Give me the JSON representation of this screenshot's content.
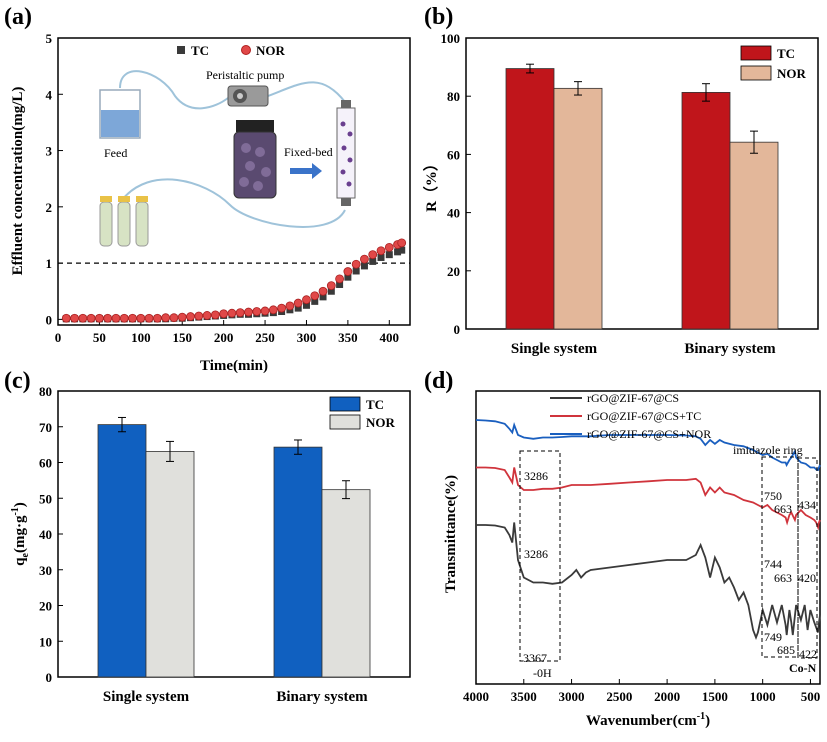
{
  "colors": {
    "tc_red": "#c0151b",
    "nor_tan": "#e3b79a",
    "tc_blue": "#1060c0",
    "nor_gray": "#e0e0dc",
    "tc_dark": "#3a3a3a",
    "nor_sphere": "#e04848",
    "line_black": "#3a3a3a",
    "line_red": "#d0343c",
    "line_blue": "#1a5fbf"
  },
  "panels": {
    "a": "(a)",
    "b": "(b)",
    "c": "(c)",
    "d": "(d)"
  },
  "chart_data": [
    {
      "id": "a",
      "type": "scatter",
      "xlabel": "Time(min)",
      "ylabel": "Effluent concentration(mg/L)",
      "xlim": [
        0,
        425
      ],
      "ylim": [
        -0.1,
        5
      ],
      "xticks": [
        0,
        50,
        100,
        150,
        200,
        250,
        300,
        350,
        400
      ],
      "yticks": [
        0,
        1,
        2,
        3,
        4,
        5
      ],
      "reference_line_y": 1,
      "legend": [
        "TC",
        "NOR"
      ],
      "inset_labels": {
        "feed": "Feed",
        "pump": "Peristaltic pump",
        "bed": "Fixed-bed"
      },
      "series": [
        {
          "name": "TC",
          "x": [
            10,
            20,
            30,
            40,
            50,
            60,
            70,
            80,
            90,
            100,
            110,
            120,
            130,
            140,
            150,
            160,
            170,
            180,
            190,
            200,
            210,
            220,
            230,
            240,
            250,
            260,
            270,
            280,
            290,
            300,
            310,
            320,
            330,
            340,
            350,
            360,
            370,
            380,
            390,
            400,
            410,
            415
          ],
          "y": [
            0.01,
            0.01,
            0.01,
            0.01,
            0.01,
            0.01,
            0.01,
            0.01,
            0.01,
            0.01,
            0.01,
            0.01,
            0.01,
            0.02,
            0.02,
            0.03,
            0.04,
            0.05,
            0.06,
            0.07,
            0.08,
            0.09,
            0.09,
            0.1,
            0.11,
            0.12,
            0.14,
            0.17,
            0.2,
            0.25,
            0.32,
            0.4,
            0.5,
            0.62,
            0.75,
            0.86,
            0.95,
            1.03,
            1.1,
            1.15,
            1.2,
            1.23
          ]
        },
        {
          "name": "NOR",
          "x": [
            10,
            20,
            30,
            40,
            50,
            60,
            70,
            80,
            90,
            100,
            110,
            120,
            130,
            140,
            150,
            160,
            170,
            180,
            190,
            200,
            210,
            220,
            230,
            240,
            250,
            260,
            270,
            280,
            290,
            300,
            310,
            320,
            330,
            340,
            350,
            360,
            370,
            380,
            390,
            400,
            410,
            415
          ],
          "y": [
            0.02,
            0.02,
            0.02,
            0.02,
            0.02,
            0.02,
            0.02,
            0.02,
            0.02,
            0.02,
            0.02,
            0.02,
            0.03,
            0.03,
            0.04,
            0.05,
            0.06,
            0.07,
            0.08,
            0.1,
            0.11,
            0.12,
            0.13,
            0.14,
            0.15,
            0.17,
            0.2,
            0.24,
            0.29,
            0.35,
            0.42,
            0.5,
            0.6,
            0.72,
            0.85,
            0.98,
            1.07,
            1.15,
            1.22,
            1.28,
            1.33,
            1.36
          ]
        }
      ]
    },
    {
      "id": "b",
      "type": "bar",
      "categories": [
        "Single system",
        "Binary system"
      ],
      "ylabel": "R（%）",
      "ylim": [
        0,
        100
      ],
      "yticks": [
        0,
        20,
        40,
        60,
        80,
        100
      ],
      "legend_position": "top-right",
      "series": [
        {
          "name": "TC",
          "values": [
            89.5,
            81.3
          ],
          "errors": [
            1.5,
            3.0
          ]
        },
        {
          "name": "NOR",
          "values": [
            82.7,
            64.2
          ],
          "errors": [
            2.3,
            3.8
          ]
        }
      ]
    },
    {
      "id": "c",
      "type": "bar",
      "categories": [
        "Single system",
        "Binary system"
      ],
      "ylabel_main": "q",
      "ylabel_sub": "e",
      "ylabel_unit": "(mg·g",
      "ylabel_sup": "-1",
      "ylabel_end": ")",
      "ylim": [
        0,
        80
      ],
      "yticks": [
        0,
        10,
        20,
        30,
        40,
        50,
        60,
        70,
        80
      ],
      "legend_position": "top-right",
      "series": [
        {
          "name": "TC",
          "values": [
            70.6,
            64.3
          ],
          "errors": [
            2.0,
            2.0
          ]
        },
        {
          "name": "NOR",
          "values": [
            63.1,
            52.4
          ],
          "errors": [
            2.8,
            2.5
          ]
        }
      ]
    },
    {
      "id": "d",
      "type": "line",
      "xlabel": "Wavenumber(cm",
      "xlabel_sup": "-1",
      "xlabel_end": ")",
      "ylabel": "Transmittance(%)",
      "xlim": [
        4000,
        400
      ],
      "xticks": [
        4000,
        3500,
        3000,
        2500,
        2000,
        1500,
        1000,
        500
      ],
      "legend": [
        "rGO@ZIF-67@CS",
        "rGO@ZIF-67@CS+TC",
        "rGO@ZIF-67@CS+NOR"
      ],
      "annotations": {
        "imidazole": "imidazole ring",
        "nor_3286": "3286",
        "tc_3286": "3286",
        "base_3367": "3367",
        "oh": "-0H",
        "nor_750": "750",
        "nor_663": "663",
        "nor_434": "434",
        "tc_744": "744",
        "tc_663": "663",
        "tc_420": "420",
        "base_749": "749",
        "base_685": "685",
        "base_422": "422",
        "con": "Co-N"
      },
      "series": [
        {
          "name": "rGO@ZIF-67@CS",
          "x": [
            4000,
            3900,
            3800,
            3700,
            3650,
            3620,
            3600,
            3560,
            3500,
            3400,
            3300,
            3200,
            3100,
            3000,
            2950,
            2900,
            2850,
            2800,
            2600,
            2400,
            2200,
            2000,
            1800,
            1700,
            1650,
            1600,
            1550,
            1500,
            1450,
            1400,
            1350,
            1300,
            1250,
            1200,
            1150,
            1100,
            1070,
            1050,
            1000,
            950,
            900,
            850,
            800,
            760,
            749,
            720,
            700,
            685,
            650,
            600,
            560,
            530,
            500,
            460,
            440,
            430,
            422,
            410,
            400
          ],
          "y": [
            54,
            54,
            53.8,
            53,
            50,
            47,
            55,
            40,
            33,
            31,
            31,
            30.5,
            31,
            34,
            36,
            33,
            35,
            36,
            37,
            38,
            39,
            40,
            40,
            42,
            46,
            41,
            33,
            41,
            37,
            31,
            33,
            29,
            24,
            27,
            22,
            12,
            9,
            11,
            20,
            14,
            22,
            15,
            22,
            14,
            10,
            20,
            15,
            10,
            22,
            16,
            22,
            12,
            20,
            15,
            13,
            12,
            11,
            15,
            18
          ]
        },
        {
          "name": "rGO@ZIF-67@CS+TC",
          "x": [
            4000,
            3900,
            3800,
            3700,
            3650,
            3620,
            3600,
            3560,
            3500,
            3400,
            3300,
            3200,
            3100,
            3000,
            2900,
            2800,
            2600,
            2400,
            2200,
            2000,
            1800,
            1700,
            1650,
            1600,
            1550,
            1500,
            1450,
            1400,
            1300,
            1200,
            1100,
            1050,
            1000,
            950,
            900,
            850,
            800,
            760,
            744,
            720,
            700,
            663,
            650,
            600,
            550,
            500,
            460,
            440,
            430,
            420,
            410,
            400
          ],
          "y": [
            77,
            77,
            76.8,
            76,
            73,
            71,
            77,
            70,
            68,
            68,
            68.5,
            68.5,
            69,
            70,
            70,
            70,
            70.5,
            71,
            71.5,
            72,
            72,
            72.5,
            71,
            66,
            69,
            67,
            69,
            67,
            66,
            64,
            63,
            62,
            61,
            62,
            60,
            59,
            58,
            57,
            55,
            58,
            59,
            56,
            58,
            60,
            58,
            57,
            56,
            55,
            54,
            53,
            55,
            56
          ]
        },
        {
          "name": "rGO@ZIF-67@CS+NOR",
          "x": [
            4000,
            3900,
            3800,
            3700,
            3650,
            3620,
            3600,
            3560,
            3500,
            3400,
            3300,
            3200,
            3100,
            3000,
            2900,
            2800,
            2600,
            2400,
            2200,
            2000,
            1800,
            1700,
            1650,
            1600,
            1550,
            1500,
            1450,
            1400,
            1300,
            1200,
            1100,
            1050,
            1000,
            950,
            900,
            850,
            800,
            760,
            750,
            720,
            700,
            663,
            650,
            600,
            550,
            500,
            460,
            434,
            420,
            410,
            400
          ],
          "y": [
            96,
            95.8,
            95.5,
            94.5,
            92.5,
            91,
            94,
            90,
            89,
            88.5,
            89,
            89,
            89.2,
            89.5,
            89.5,
            89.5,
            90,
            90,
            90,
            90,
            89.8,
            89.5,
            88.5,
            86,
            88,
            86.5,
            88,
            87,
            86,
            85.5,
            84,
            83,
            82,
            82.5,
            81,
            80,
            79,
            79,
            78,
            80,
            81,
            83.5,
            81,
            79,
            78.5,
            77,
            77,
            76,
            76,
            77,
            78
          ]
        }
      ]
    }
  ]
}
